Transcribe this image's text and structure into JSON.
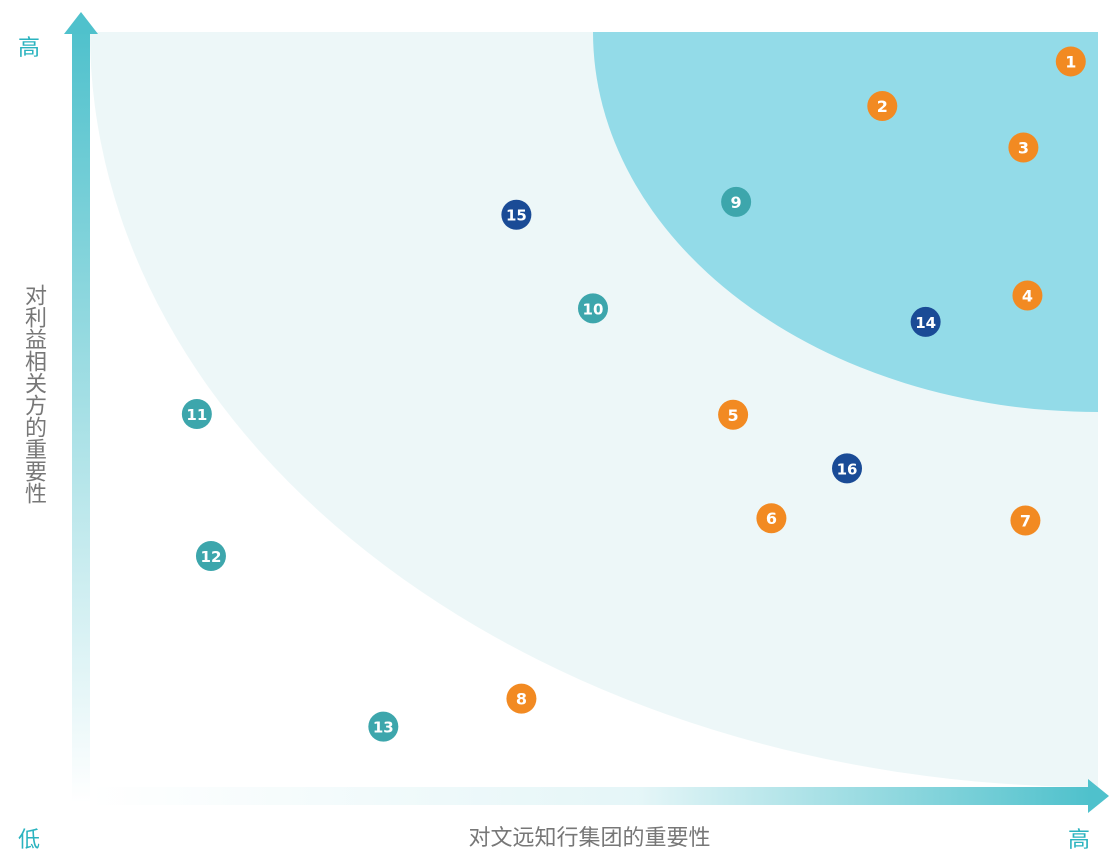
{
  "labels": {
    "y_high": "高",
    "low": "低",
    "x_high": "高",
    "ylabel": "对利益相关方的重要性",
    "xlabel": "对文远知行集团的重要性"
  },
  "colors": {
    "orange": "#f28a22",
    "teal": "#3da6ac",
    "navy": "#1a4b96",
    "region_inner": "#93dbe8",
    "region_outer": "#edf7f8",
    "axis": "#4fc1cc"
  },
  "chart_data": {
    "type": "scatter",
    "title": "",
    "xlabel": "对文远知行集团的重要性",
    "ylabel": "对利益相关方的重要性",
    "x_tick_labels": [
      "低",
      "高"
    ],
    "y_tick_labels": [
      "低",
      "高"
    ],
    "xlim": [
      0,
      100
    ],
    "ylim": [
      0,
      100
    ],
    "grid": false,
    "points": [
      {
        "label": "1",
        "x": 97.3,
        "y": 96.1,
        "color": "orange"
      },
      {
        "label": "2",
        "x": 78.6,
        "y": 90.2,
        "color": "orange"
      },
      {
        "label": "3",
        "x": 92.6,
        "y": 84.7,
        "color": "orange"
      },
      {
        "label": "4",
        "x": 93.0,
        "y": 65.1,
        "color": "orange"
      },
      {
        "label": "5",
        "x": 63.8,
        "y": 49.3,
        "color": "orange"
      },
      {
        "label": "6",
        "x": 67.6,
        "y": 35.6,
        "color": "orange"
      },
      {
        "label": "7",
        "x": 92.8,
        "y": 35.3,
        "color": "orange"
      },
      {
        "label": "8",
        "x": 42.8,
        "y": 11.7,
        "color": "orange"
      },
      {
        "label": "9",
        "x": 64.1,
        "y": 77.5,
        "color": "teal"
      },
      {
        "label": "10",
        "x": 49.9,
        "y": 63.4,
        "color": "teal"
      },
      {
        "label": "11",
        "x": 10.6,
        "y": 49.4,
        "color": "teal"
      },
      {
        "label": "12",
        "x": 12.0,
        "y": 30.6,
        "color": "teal"
      },
      {
        "label": "13",
        "x": 29.1,
        "y": 8.0,
        "color": "teal"
      },
      {
        "label": "14",
        "x": 82.9,
        "y": 61.6,
        "color": "navy"
      },
      {
        "label": "15",
        "x": 42.3,
        "y": 75.8,
        "color": "navy"
      },
      {
        "label": "16",
        "x": 75.1,
        "y": 42.2,
        "color": "navy"
      }
    ]
  }
}
